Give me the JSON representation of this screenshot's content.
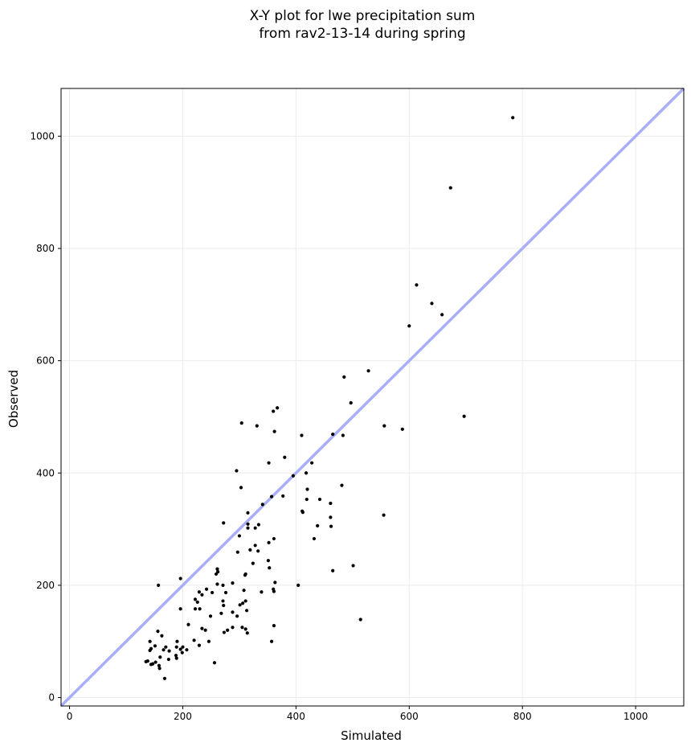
{
  "chart_data": {
    "type": "scatter",
    "title_lines": [
      "X-Y plot for lwe precipitation sum",
      "from rav2-13-14 during spring"
    ],
    "xlabel": "Simulated",
    "ylabel": "Observed",
    "xlim": [
      -15,
      1085
    ],
    "ylim": [
      -15,
      1085
    ],
    "xticks": [
      0,
      200,
      400,
      600,
      800,
      1000
    ],
    "yticks": [
      0,
      200,
      400,
      600,
      800,
      1000
    ],
    "grid": true,
    "identity_line": {
      "from": [
        -15,
        -15
      ],
      "to": [
        1085,
        1085
      ],
      "color": "#a9aef9"
    },
    "point_color": "#000000",
    "points": [
      [
        783,
        1033
      ],
      [
        673,
        908
      ],
      [
        613,
        735
      ],
      [
        640,
        702
      ],
      [
        658,
        682
      ],
      [
        600,
        662
      ],
      [
        528,
        582
      ],
      [
        485,
        571
      ],
      [
        497,
        525
      ],
      [
        367,
        516
      ],
      [
        360,
        510
      ],
      [
        697,
        501
      ],
      [
        304,
        489
      ],
      [
        331,
        484
      ],
      [
        556,
        484
      ],
      [
        588,
        478
      ],
      [
        362,
        474
      ],
      [
        465,
        469
      ],
      [
        410,
        467
      ],
      [
        483,
        467
      ],
      [
        380,
        428
      ],
      [
        428,
        418
      ],
      [
        352,
        418
      ],
      [
        295,
        404
      ],
      [
        418,
        400
      ],
      [
        395,
        395
      ],
      [
        481,
        378
      ],
      [
        303,
        374
      ],
      [
        420,
        371
      ],
      [
        377,
        359
      ],
      [
        357,
        358
      ],
      [
        442,
        353
      ],
      [
        419,
        353
      ],
      [
        461,
        346
      ],
      [
        341,
        344
      ],
      [
        411,
        332
      ],
      [
        412,
        330
      ],
      [
        315,
        329
      ],
      [
        555,
        325
      ],
      [
        461,
        321
      ],
      [
        272,
        311
      ],
      [
        315,
        309
      ],
      [
        334,
        308
      ],
      [
        438,
        306
      ],
      [
        462,
        305
      ],
      [
        315,
        302
      ],
      [
        328,
        302
      ],
      [
        432,
        283
      ],
      [
        300,
        288
      ],
      [
        361,
        283
      ],
      [
        352,
        276
      ],
      [
        328,
        271
      ],
      [
        319,
        263
      ],
      [
        333,
        261
      ],
      [
        297,
        259
      ],
      [
        311,
        220
      ],
      [
        465,
        226
      ],
      [
        310,
        218
      ],
      [
        351,
        244
      ],
      [
        324,
        239
      ],
      [
        501,
        235
      ],
      [
        353,
        231
      ],
      [
        261,
        229
      ],
      [
        262,
        224
      ],
      [
        259,
        220
      ],
      [
        196,
        212
      ],
      [
        404,
        200
      ],
      [
        157,
        200
      ],
      [
        288,
        204
      ],
      [
        363,
        205
      ],
      [
        261,
        202
      ],
      [
        271,
        200
      ],
      [
        242,
        193
      ],
      [
        360,
        193
      ],
      [
        308,
        191
      ],
      [
        229,
        188
      ],
      [
        361,
        189
      ],
      [
        252,
        187
      ],
      [
        276,
        187
      ],
      [
        339,
        188
      ],
      [
        234,
        183
      ],
      [
        222,
        175
      ],
      [
        226,
        170
      ],
      [
        271,
        172
      ],
      [
        311,
        172
      ],
      [
        306,
        168
      ],
      [
        301,
        165
      ],
      [
        272,
        164
      ],
      [
        196,
        158
      ],
      [
        222,
        158
      ],
      [
        230,
        158
      ],
      [
        313,
        155
      ],
      [
        288,
        152
      ],
      [
        268,
        150
      ],
      [
        249,
        145
      ],
      [
        296,
        145
      ],
      [
        514,
        139
      ],
      [
        210,
        130
      ],
      [
        361,
        128
      ],
      [
        305,
        125
      ],
      [
        288,
        125
      ],
      [
        234,
        123
      ],
      [
        311,
        122
      ],
      [
        240,
        120
      ],
      [
        279,
        120
      ],
      [
        156,
        118
      ],
      [
        314,
        115
      ],
      [
        273,
        116
      ],
      [
        163,
        110
      ],
      [
        220,
        102
      ],
      [
        357,
        100
      ],
      [
        246,
        100
      ],
      [
        142,
        100
      ],
      [
        190,
        100
      ],
      [
        229,
        93
      ],
      [
        151,
        92
      ],
      [
        170,
        90
      ],
      [
        189,
        90
      ],
      [
        200,
        90
      ],
      [
        207,
        85
      ],
      [
        196,
        86
      ],
      [
        144,
        87
      ],
      [
        166,
        85
      ],
      [
        176,
        83
      ],
      [
        199,
        80
      ],
      [
        142,
        84
      ],
      [
        188,
        75
      ],
      [
        160,
        72
      ],
      [
        189,
        70
      ],
      [
        175,
        68
      ],
      [
        135,
        64
      ],
      [
        138,
        65
      ],
      [
        152,
        63
      ],
      [
        147,
        60
      ],
      [
        256,
        62
      ],
      [
        144,
        59
      ],
      [
        158,
        57
      ],
      [
        159,
        52
      ],
      [
        168,
        34
      ]
    ]
  }
}
